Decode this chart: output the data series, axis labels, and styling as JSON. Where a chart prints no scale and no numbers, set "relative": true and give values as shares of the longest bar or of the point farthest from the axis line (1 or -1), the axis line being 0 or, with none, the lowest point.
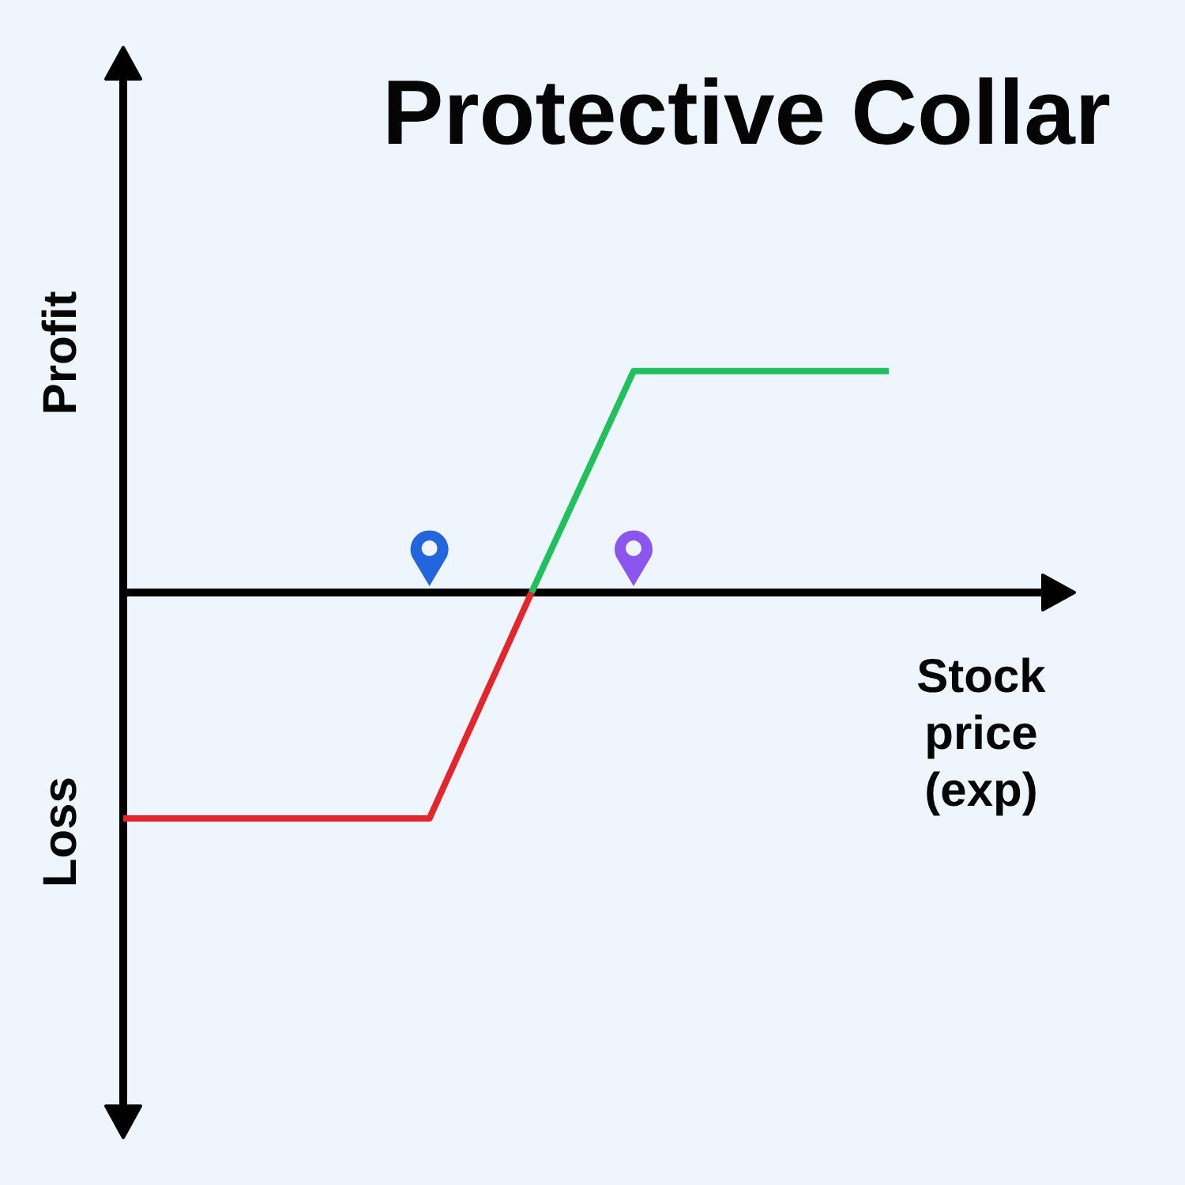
{
  "chart_data": {
    "type": "line",
    "title": "Protective Collar",
    "xlabel": "Stock price (exp)",
    "annotations": [
      "Profit",
      "Loss"
    ],
    "relative": true,
    "categories": [
      null,
      null,
      null,
      null,
      null,
      null,
      null,
      null,
      null,
      null,
      null,
      null,
      null,
      null,
      null,
      null
    ],
    "series": [
      {
        "color": "#e4252b",
        "values": [
          -1,
          -1,
          -1,
          -1,
          -1,
          -1,
          -1,
          -0.5,
          0,
          null,
          null,
          null,
          null,
          null,
          null,
          null
        ]
      },
      {
        "color": "#20c05c",
        "values": [
          null,
          null,
          null,
          null,
          null,
          null,
          null,
          null,
          0,
          0.49,
          0.98,
          0.98,
          0.98,
          0.98,
          0.98,
          0.98
        ]
      }
    ],
    "line_style": "solid"
  }
}
